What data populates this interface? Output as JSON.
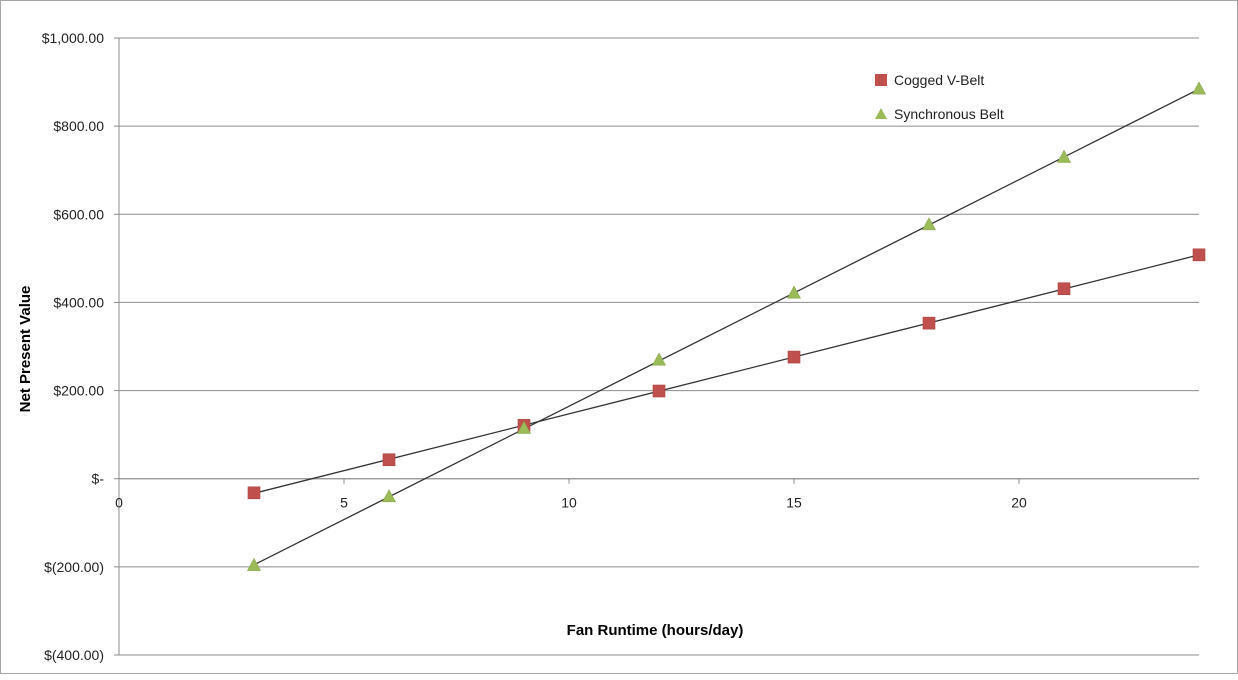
{
  "chart_data": {
    "type": "scatter",
    "title": "",
    "xlabel": "Fan Runtime (hours/day)",
    "ylabel": "Net Present Value",
    "xlim": [
      0,
      24
    ],
    "ylim": [
      -400,
      1000
    ],
    "xticks": [
      0,
      5,
      10,
      15,
      20
    ],
    "xtick_labels": [
      "0",
      "5",
      "10",
      "15",
      "20"
    ],
    "yticks": [
      -400,
      -200,
      0,
      200,
      400,
      600,
      800,
      1000
    ],
    "ytick_labels": [
      "$(400.00)",
      "$(200.00)",
      "$-",
      "$200.00",
      "$400.00",
      "$600.00",
      "$800.00",
      "$1,000.00"
    ],
    "grid": "horizontal",
    "legend_position": "top-right",
    "trendlines": "linear",
    "series": [
      {
        "name": "Cogged V-Belt",
        "marker": "square",
        "color": "#c0504d",
        "x": [
          3,
          6,
          9,
          12,
          15,
          18,
          21,
          24
        ],
        "values": [
          -32,
          43,
          121,
          199,
          276,
          353,
          431,
          508
        ]
      },
      {
        "name": "Synchronous Belt",
        "marker": "triangle",
        "color": "#9bbb59",
        "x": [
          3,
          6,
          9,
          12,
          15,
          18,
          21,
          24
        ],
        "values": [
          -197,
          -41,
          114,
          269,
          421,
          576,
          729,
          884
        ]
      }
    ]
  }
}
